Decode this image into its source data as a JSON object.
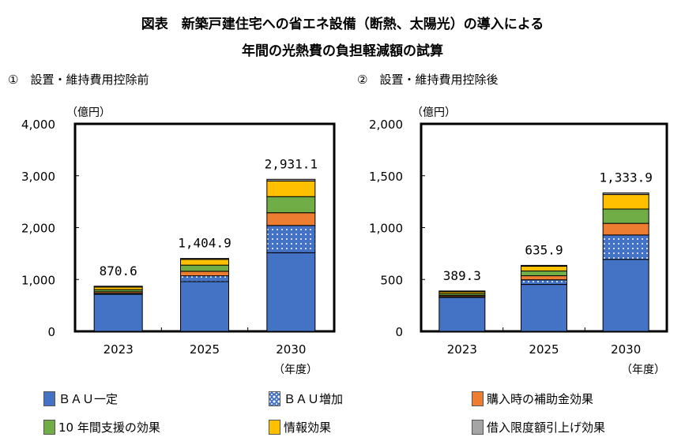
{
  "title_line1": "図表　新築戸建住宅への省エネ設備（断熱、太陽光）の導入による",
  "title_line2": "年間の光熱費の負担軽減額の試算",
  "unit_label": "（億円）",
  "year_unit": "（年度）",
  "legend": [
    {
      "name": "ＢＡＵ一定",
      "color": "#4472C4",
      "pattern": "solid"
    },
    {
      "name": "ＢＡＵ増加",
      "color": "#4472C4",
      "pattern": "dotted"
    },
    {
      "name": "購入時の補助金効果",
      "color": "#ED7D31",
      "pattern": "solid"
    },
    {
      "name": "10 年間支援の効果",
      "color": "#70AD47",
      "pattern": "solid"
    },
    {
      "name": "情報効果",
      "color": "#FFC000",
      "pattern": "solid"
    },
    {
      "name": "借入限度額引上げ効果",
      "color": "#A5A5A5",
      "pattern": "solid"
    }
  ],
  "chart_data": [
    {
      "type": "bar",
      "stacked": true,
      "title": "①　設置・維持費用控除前",
      "categories": [
        "2023",
        "2025",
        "2030"
      ],
      "ylim": [
        0,
        4000
      ],
      "yticks": [
        "0",
        "1,000",
        "2,000",
        "3,000",
        "4,000"
      ],
      "ytick_values": [
        0,
        1000,
        2000,
        3000,
        4000
      ],
      "totals": [
        "870.6",
        "1,404.9",
        "2,931.1"
      ],
      "total_values": [
        870.6,
        1404.9,
        2931.1
      ],
      "series": [
        {
          "name": "ＢＡＵ一定",
          "values": [
            714,
            959,
            1515
          ]
        },
        {
          "name": "ＢＡＵ増加",
          "values": [
            20,
            112,
            526
          ]
        },
        {
          "name": "購入時の補助金効果",
          "values": [
            30,
            87,
            245
          ]
        },
        {
          "name": "10 年間支援の効果",
          "values": [
            40,
            118,
            311
          ]
        },
        {
          "name": "情報効果",
          "values": [
            50,
            112,
            301
          ]
        },
        {
          "name": "借入限度額引上げ効果",
          "values": [
            17,
            17,
            33
          ]
        }
      ]
    },
    {
      "type": "bar",
      "stacked": true,
      "title": "②　設置・維持費用控除後",
      "categories": [
        "2023",
        "2025",
        "2030"
      ],
      "ylim": [
        0,
        2000
      ],
      "yticks": [
        "0",
        "500",
        "1,000",
        "1,500",
        "2,000"
      ],
      "ytick_values": [
        0,
        500,
        1000,
        1500,
        2000
      ],
      "totals": [
        "389.3",
        "635.9",
        "1,333.9"
      ],
      "total_values": [
        389.3,
        635.9,
        1333.9
      ],
      "series": [
        {
          "name": "ＢＡＵ一定",
          "values": [
            327,
            452,
            694
          ]
        },
        {
          "name": "ＢＡＵ増加",
          "values": [
            8,
            45,
            235
          ]
        },
        {
          "name": "購入時の補助金効果",
          "values": [
            12,
            39,
            112
          ]
        },
        {
          "name": "10 年間支援の効果",
          "values": [
            17,
            46,
            138
          ]
        },
        {
          "name": "情報効果",
          "values": [
            17,
            46,
            140
          ]
        },
        {
          "name": "借入限度額引上げ効果",
          "values": [
            8,
            8,
            15
          ]
        }
      ]
    }
  ]
}
